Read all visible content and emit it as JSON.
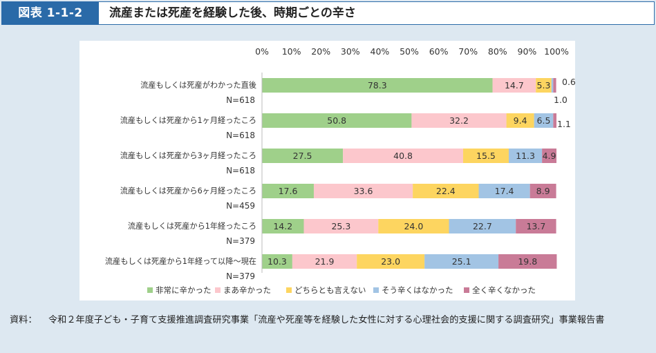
{
  "figure": {
    "label": "図表 1-1-2",
    "title": "流産または死産を経験した後、時期ごとの辛さ"
  },
  "source": {
    "prefix": "資料：",
    "text": "令和２年度子ども・子育て支援推進調査研究事業「流産や死産等を経験した女性に対する心理社会的支援に関する調査研究」事業報告書"
  },
  "chart_data": {
    "type": "bar",
    "orientation": "horizontal",
    "stacked": true,
    "xlim": [
      0,
      100
    ],
    "x_ticks": [
      "0%",
      "10%",
      "20%",
      "30%",
      "40%",
      "50%",
      "60%",
      "70%",
      "80%",
      "90%",
      "100%"
    ],
    "legend_position": "bottom",
    "colors": [
      "#9fd08a",
      "#fcc7cc",
      "#fdd560",
      "#a2c4e4",
      "#c97b97"
    ],
    "categories": [
      {
        "label": "流産もしくは死産がわかった直後",
        "n": "N=618"
      },
      {
        "label": "流産もしくは死産から1ヶ月経ったころ",
        "n": "N=618"
      },
      {
        "label": "流産もしくは死産から3ヶ月経ったころ",
        "n": "N=618"
      },
      {
        "label": "流産もしくは死産から6ヶ月経ったころ",
        "n": "N=459"
      },
      {
        "label": "流産もしくは死産から1年経ったころ",
        "n": "N=379"
      },
      {
        "label": "流産もしくは死産から1年経って以降～現在",
        "n": "N=379"
      }
    ],
    "series": [
      {
        "name": "非常に辛かった",
        "values": [
          78.3,
          50.8,
          27.5,
          17.6,
          14.2,
          10.3
        ]
      },
      {
        "name": "まあ辛かった",
        "values": [
          14.7,
          32.2,
          40.8,
          33.6,
          25.3,
          21.9
        ]
      },
      {
        "name": "どちらとも言えない",
        "values": [
          5.3,
          9.4,
          15.5,
          22.4,
          24.0,
          23.0
        ]
      },
      {
        "name": "そう辛くはなかった",
        "values": [
          0.6,
          6.5,
          11.3,
          17.4,
          22.7,
          25.1
        ]
      },
      {
        "name": "全く辛くなかった",
        "values": [
          1.0,
          1.1,
          4.9,
          8.9,
          13.7,
          19.8
        ]
      }
    ],
    "value_labels": [
      [
        "78.3",
        "14.7",
        "5.3",
        "0.6",
        "1.0"
      ],
      [
        "50.8",
        "32.2",
        "9.4",
        "6.5",
        "1.1"
      ],
      [
        "27.5",
        "40.8",
        "15.5",
        "11.3",
        "4.9"
      ],
      [
        "17.6",
        "33.6",
        "22.4",
        "17.4",
        "8.9"
      ],
      [
        "14.2",
        "25.3",
        "24.0",
        "22.7",
        "13.7"
      ],
      [
        "10.3",
        "21.9",
        "23.0",
        "25.1",
        "19.8"
      ]
    ]
  }
}
